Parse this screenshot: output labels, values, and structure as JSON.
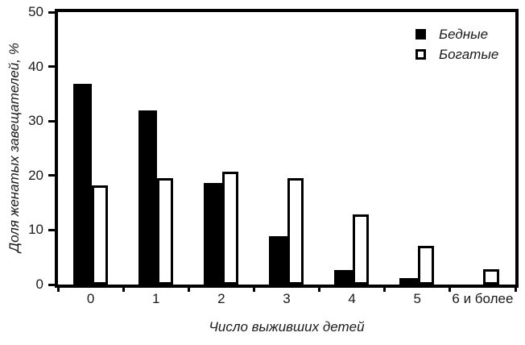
{
  "colors": {
    "bar_fill": "#000000",
    "bar_open_fill": "#ffffff",
    "frame": "#000000",
    "background": "#ffffff",
    "text": "#1a1a1a"
  },
  "chart_data": {
    "type": "bar",
    "title": "",
    "xlabel": "Число выживших детей",
    "ylabel": "Доля женатых завещателей, %",
    "categories": [
      "0",
      "1",
      "2",
      "3",
      "4",
      "5",
      "6 и более"
    ],
    "series": [
      {
        "key": "poor",
        "name": "Бедные",
        "style": "filled-black",
        "values": [
          36.8,
          31.9,
          18.6,
          8.9,
          2.7,
          1.2,
          0
        ]
      },
      {
        "key": "rich",
        "name": "Богатые",
        "style": "open-white",
        "values": [
          18.2,
          19.5,
          20.7,
          19.6,
          12.9,
          7.1,
          2.8
        ]
      }
    ],
    "ylim": [
      0,
      50
    ],
    "yticks": [
      0,
      10,
      20,
      30,
      40,
      50
    ],
    "grid": false,
    "legend_position": "top-right"
  }
}
